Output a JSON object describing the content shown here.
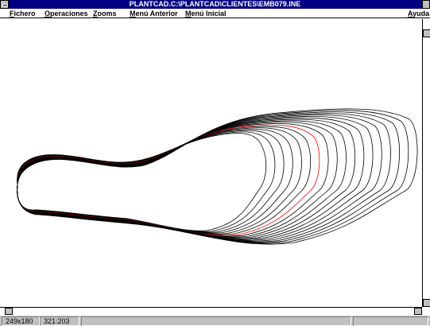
{
  "title_bar": {
    "title": "PLANTCAD.C:\\PLANTCAD\\CLIENTES\\EMB079.INE"
  },
  "menu": {
    "items": [
      "Fichero",
      "Operaciones",
      "Zooms",
      "Menú Anterior",
      "Menú Inicial"
    ],
    "help": "Ayuda"
  },
  "status_bar": {
    "fields": [
      "249x180",
      "321:203"
    ]
  }
}
